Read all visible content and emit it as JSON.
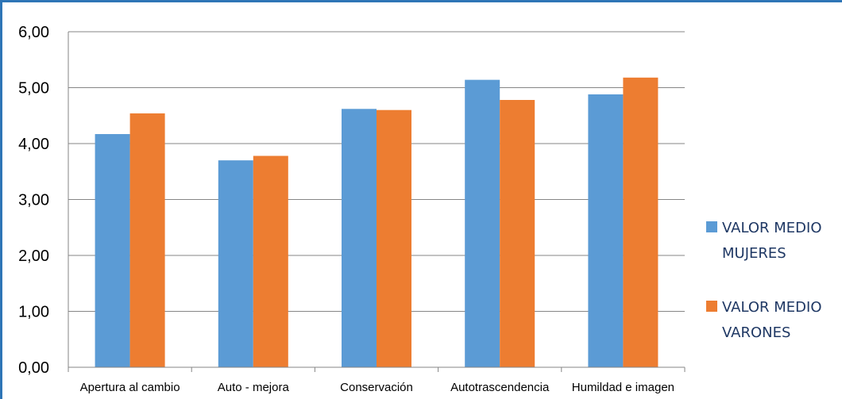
{
  "chart_data": {
    "type": "bar",
    "categories": [
      "Apertura al cambio",
      "Auto - mejora",
      "Conservación",
      "Autotrascendencia",
      "Humildad e imagen"
    ],
    "series": [
      {
        "name": "VALOR MEDIO MUJERES",
        "values": [
          4.17,
          3.7,
          4.62,
          5.14,
          4.88
        ],
        "color": "#5b9bd5"
      },
      {
        "name": "VALOR MEDIO VARONES",
        "values": [
          4.54,
          3.78,
          4.6,
          4.78,
          5.18
        ],
        "color": "#ed7d31"
      }
    ],
    "ylim": [
      0,
      6
    ],
    "yticks": [
      "0,00",
      "1,00",
      "2,00",
      "3,00",
      "4,00",
      "5,00",
      "6,00"
    ],
    "grid": true,
    "legend": "right",
    "legend_lines": [
      [
        "VALOR MEDIO",
        "MUJERES"
      ],
      [
        "VALOR MEDIO",
        "VARONES"
      ]
    ],
    "title": "",
    "xlabel": "",
    "ylabel": ""
  }
}
